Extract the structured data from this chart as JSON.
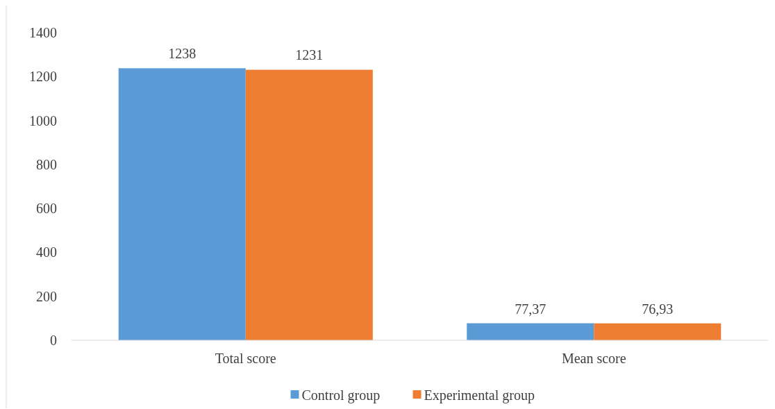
{
  "chart_data": {
    "type": "bar",
    "categories": [
      "Total score",
      "Mean score"
    ],
    "series": [
      {
        "name": "Control group",
        "color": "#5b9bd5",
        "values": [
          1238,
          77.37
        ],
        "value_labels": [
          "1238",
          "77,37"
        ]
      },
      {
        "name": "Experimental group",
        "color": "#ed7d31",
        "values": [
          1231,
          76.93
        ],
        "value_labels": [
          "1231",
          "76,93"
        ]
      }
    ],
    "ylim": [
      0,
      1400
    ],
    "yticks": [
      0,
      200,
      400,
      600,
      800,
      1000,
      1200,
      1400
    ],
    "grid": false,
    "legend": "bottom"
  }
}
